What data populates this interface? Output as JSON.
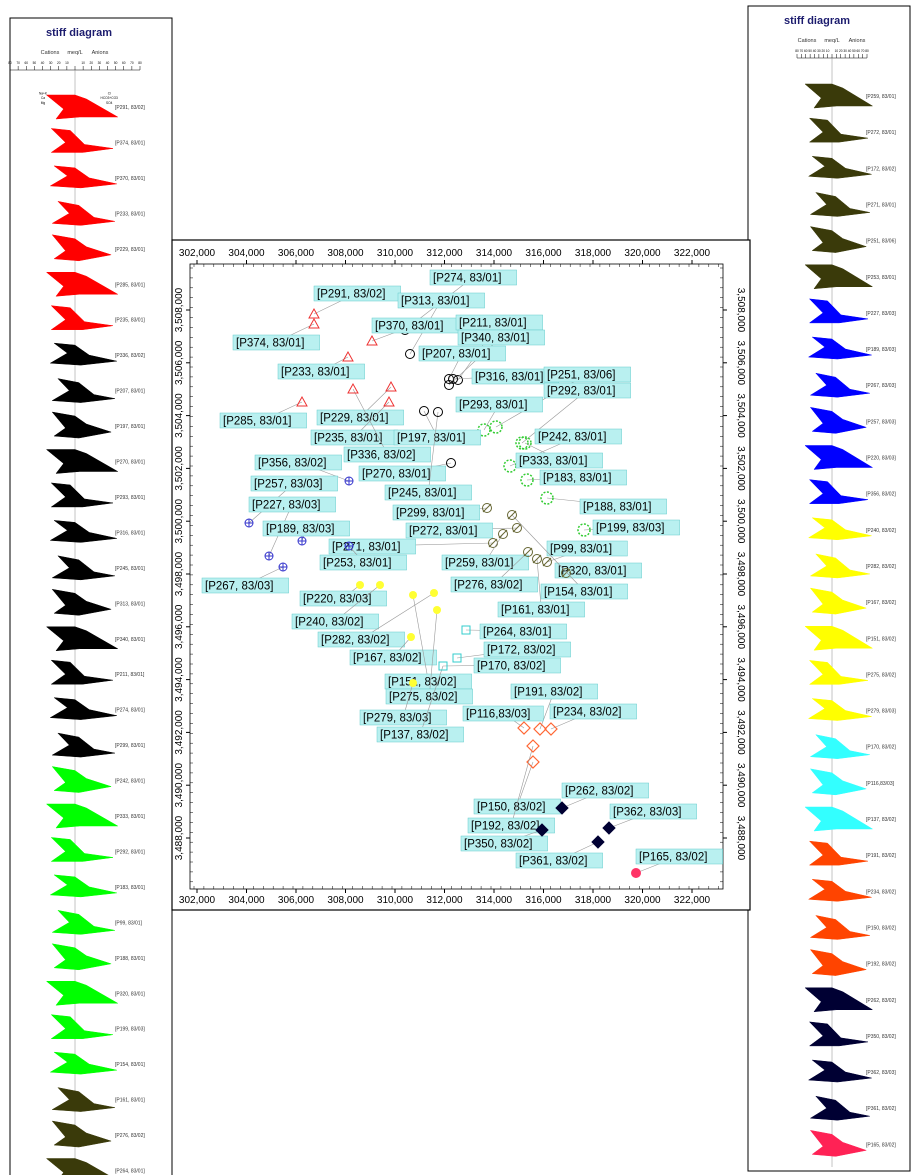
{
  "left_panel": {
    "title": "stiff diagram",
    "header": {
      "cations": "Cations",
      "units": "meq/L",
      "anions": "Anions",
      "scale_labels": [
        "80",
        "70",
        "60",
        "50",
        "40",
        "30",
        "20",
        "10",
        "",
        "10",
        "20",
        "30",
        "40",
        "50",
        "60",
        "70",
        "80"
      ],
      "ion_labels": [
        "Na+K",
        "Cl",
        "Ca",
        "HCO3+CO3",
        "Mg",
        "SO4"
      ]
    },
    "items": [
      {
        "label": "[P291, 83/02]",
        "color": "#ff0000"
      },
      {
        "label": "[P374, 83/01]",
        "color": "#ff0000"
      },
      {
        "label": "[P370, 83/01]",
        "color": "#ff0000"
      },
      {
        "label": "[P233, 83/01]",
        "color": "#ff0000"
      },
      {
        "label": "[P229, 83/01]",
        "color": "#ff0000"
      },
      {
        "label": "[P285, 83/01]",
        "color": "#ff0000"
      },
      {
        "label": "[P235, 83/01]",
        "color": "#ff0000"
      },
      {
        "label": "[P336, 83/02]",
        "color": "#000000"
      },
      {
        "label": "[P207, 83/01]",
        "color": "#000000"
      },
      {
        "label": "[P197, 83/01]",
        "color": "#000000"
      },
      {
        "label": "[P270, 83/01]",
        "color": "#000000"
      },
      {
        "label": "[P293, 83/01]",
        "color": "#000000"
      },
      {
        "label": "[P316, 83/01]",
        "color": "#000000"
      },
      {
        "label": "[P245, 83/01]",
        "color": "#000000"
      },
      {
        "label": "[P313, 83/01]",
        "color": "#000000"
      },
      {
        "label": "[P340, 83/01]",
        "color": "#000000"
      },
      {
        "label": "[P211, 83/01]",
        "color": "#000000"
      },
      {
        "label": "[P274, 83/01]",
        "color": "#000000"
      },
      {
        "label": "[P299, 83/01]",
        "color": "#000000"
      },
      {
        "label": "[P242, 83/01]",
        "color": "#00ff00"
      },
      {
        "label": "[P333, 83/01]",
        "color": "#00ff00"
      },
      {
        "label": "[P292, 83/01]",
        "color": "#00ff00"
      },
      {
        "label": "[P183, 83/01]",
        "color": "#00ff00"
      },
      {
        "label": "[P99, 83/01]",
        "color": "#00ff00"
      },
      {
        "label": "[P188, 83/01]",
        "color": "#00ff00"
      },
      {
        "label": "[P320, 83/01]",
        "color": "#00ff00"
      },
      {
        "label": "[P199, 83/03]",
        "color": "#00ff00"
      },
      {
        "label": "[P154, 83/01]",
        "color": "#00ff00"
      },
      {
        "label": "[P161, 83/01]",
        "color": "#3a3a0a"
      },
      {
        "label": "[P276, 83/02]",
        "color": "#3a3a0a"
      },
      {
        "label": "[P264, 83/01]",
        "color": "#3a3a0a"
      }
    ]
  },
  "right_panel": {
    "title": "stiff diagram",
    "header": {
      "cations": "Cations",
      "units": "meq/L",
      "anions": "Anions",
      "scale_labels": [
        "80",
        "70",
        "60",
        "50",
        "40",
        "30",
        "20",
        "10",
        "",
        "10",
        "20",
        "30",
        "40",
        "50",
        "60",
        "70",
        "80"
      ]
    },
    "items": [
      {
        "label": "[P259, 83/01]",
        "color": "#3a3a0a"
      },
      {
        "label": "[P272, 83/01]",
        "color": "#3a3a0a"
      },
      {
        "label": "[P172, 83/02]",
        "color": "#3a3a0a"
      },
      {
        "label": "[P271, 83/01]",
        "color": "#3a3a0a"
      },
      {
        "label": "[P251, 83/06]",
        "color": "#3a3a0a"
      },
      {
        "label": "[P253, 83/01]",
        "color": "#3a3a0a"
      },
      {
        "label": "[P227, 83/03]",
        "color": "#0000ff"
      },
      {
        "label": "[P189, 83/03]",
        "color": "#0000ff"
      },
      {
        "label": "[P267, 83/03]",
        "color": "#0000ff"
      },
      {
        "label": "[P257, 83/03]",
        "color": "#0000ff"
      },
      {
        "label": "[P220, 83/03]",
        "color": "#0000ff"
      },
      {
        "label": "[P356, 83/02]",
        "color": "#0000ff"
      },
      {
        "label": "[P240, 83/02]",
        "color": "#ffff00"
      },
      {
        "label": "[P282, 83/02]",
        "color": "#ffff00"
      },
      {
        "label": "[P167, 83/02]",
        "color": "#ffff00"
      },
      {
        "label": "[P151, 83/02]",
        "color": "#ffff00"
      },
      {
        "label": "[P275, 83/02]",
        "color": "#ffff00"
      },
      {
        "label": "[P279, 83/03]",
        "color": "#ffff00"
      },
      {
        "label": "[P170, 83/02]",
        "color": "#33ffff"
      },
      {
        "label": "[P116,83/03]",
        "color": "#33ffff"
      },
      {
        "label": "[P137, 83/02]",
        "color": "#33ffff"
      },
      {
        "label": "[P191, 83/02]",
        "color": "#ff4400"
      },
      {
        "label": "[P234, 83/02]",
        "color": "#ff4400"
      },
      {
        "label": "[P150, 83/02]",
        "color": "#ff4400"
      },
      {
        "label": "[P192, 83/02]",
        "color": "#ff4400"
      },
      {
        "label": "[P262, 83/02]",
        "color": "#000033"
      },
      {
        "label": "[P350, 83/02]",
        "color": "#000033"
      },
      {
        "label": "[P362, 83/03]",
        "color": "#000033"
      },
      {
        "label": "[P361, 83/02]",
        "color": "#000033"
      },
      {
        "label": "[P165, 83/02]",
        "color": "#ff2255"
      }
    ]
  },
  "map": {
    "x_ticks": [
      "302,000",
      "304,000",
      "306,000",
      "308,000",
      "310,000",
      "312,000",
      "314,000",
      "316,000",
      "318,000",
      "320,000",
      "322,000"
    ],
    "y_ticks": [
      "3,508,000",
      "3,506,000",
      "3,504,000",
      "3,502,000",
      "3,500,000",
      "3,498,000",
      "3,496,000",
      "3,494,000",
      "3,492,000",
      "3,490,000",
      "3,488,000"
    ],
    "labels": [
      "[P274, 83/01]",
      "[P291, 83/02]",
      "[P313, 83/01]",
      "[P370, 83/01]",
      "[P211, 83/01]",
      "[P340, 83/01]",
      "[P374, 83/01]",
      "[P207, 83/01]",
      "[P233, 83/01]",
      "[P316, 83/01]",
      "[P251, 83/06]",
      "[P293, 83/01]",
      "[P292, 83/01]",
      "[P229, 83/01]",
      "[P285, 83/01]",
      "[P242, 83/01]",
      "[P235, 83/01]",
      "[P197, 83/01]",
      "[P336, 83/02]",
      "[P333, 83/01]",
      "[P356, 83/02]",
      "[P270, 83/01]",
      "[P183, 83/01]",
      "[P257, 83/03]",
      "[P245, 83/01]",
      "[P188, 83/01]",
      "[P227, 83/03]",
      "[P299, 83/01]",
      "[P199, 83/03]",
      "[P189, 83/03]",
      "[P272, 83/01]",
      "[P271, 83/01]",
      "[P99, 83/01]",
      "[P253, 83/01]",
      "[P259, 83/01]",
      "[P320, 83/01]",
      "[P267, 83/03]",
      "[P276, 83/02]",
      "[P154, 83/01]",
      "[P220, 83/03]",
      "[P161, 83/01]",
      "[P240, 83/02]",
      "[P264, 83/01]",
      "[P282, 83/02]",
      "[P172, 83/02]",
      "[P167, 83/02]",
      "[P170, 83/02]",
      "[P151, 83/02]",
      "[P191, 83/02]",
      "[P275, 83/02]",
      "[P116,83/03]",
      "[P234, 83/02]",
      "[P279, 83/03]",
      "[P137, 83/02]",
      "[P150, 83/02]",
      "[P262, 83/02]",
      "[P192, 83/02]",
      "[P362, 83/03]",
      "[P350, 83/02]",
      "[P361, 83/02]",
      "[P165, 83/02]"
    ],
    "label_bg": "#b9f0f0"
  }
}
